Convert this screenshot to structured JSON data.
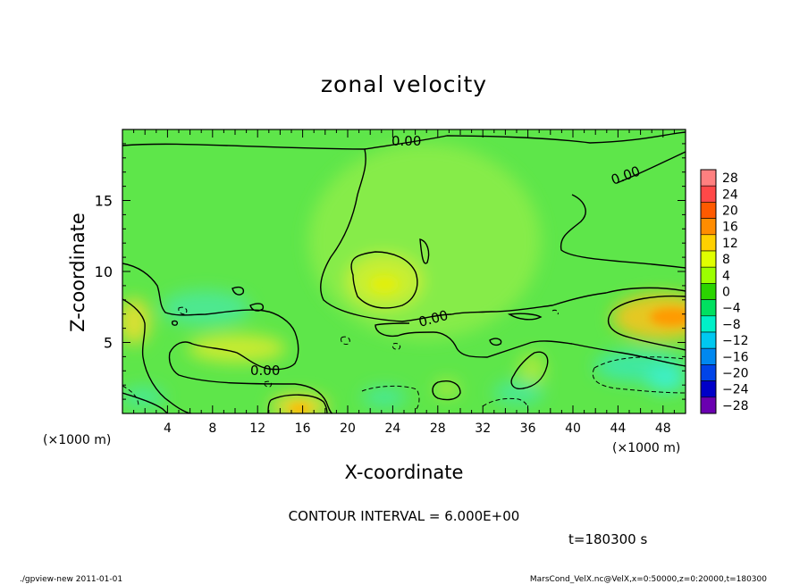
{
  "chart_data": {
    "type": "heatmap",
    "title": "zonal velocity",
    "xlabel": "X-coordinate",
    "ylabel": "Z-coordinate",
    "x_unit": "(×1000 m)",
    "y_unit": "(×1000 m)",
    "xlim": [
      0,
      50
    ],
    "ylim": [
      0,
      20
    ],
    "x_ticks": [
      4,
      8,
      12,
      16,
      20,
      24,
      28,
      32,
      36,
      40,
      44,
      48
    ],
    "y_ticks": [
      5,
      10,
      15
    ],
    "colorbar": {
      "levels": [
        28,
        24,
        20,
        16,
        12,
        8,
        4,
        0,
        -4,
        -8,
        -12,
        -16,
        -20,
        -24,
        -28
      ],
      "labels": [
        "28",
        "24",
        "20",
        "16",
        "12",
        "8",
        "4",
        "0",
        "−4",
        "−8",
        "−12",
        "−16",
        "−20",
        "−24",
        "−28"
      ],
      "colors": [
        "#ff8080",
        "#ff4848",
        "#ff5a00",
        "#ff8c00",
        "#ffd000",
        "#e0ff00",
        "#9cff00",
        "#2bd400",
        "#00e060",
        "#00f0c8",
        "#00c8f0",
        "#0088f0",
        "#0044e8",
        "#0000c8",
        "#6a00b0"
      ]
    },
    "contour_labels": [
      "0.00",
      "0.00",
      "0.00",
      "0.00"
    ],
    "contour_interval_text": "CONTOUR INTERVAL = 6.000E+00"
  },
  "time_text": "t=180300 s",
  "footer_left": "./gpview-new  2011-01-01",
  "footer_right": "MarsCond_VelX.nc@VelX,x=0:50000,z=0:20000,t=180300"
}
